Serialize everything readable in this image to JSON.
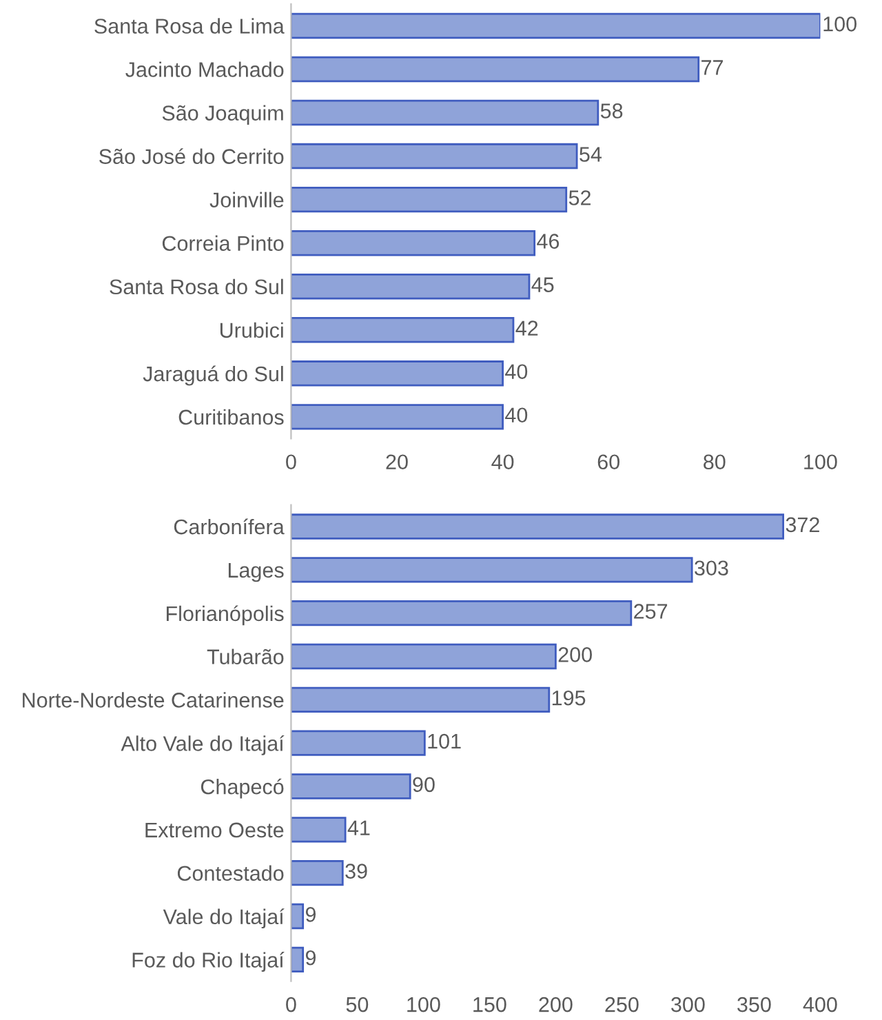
{
  "chart_data": [
    {
      "type": "bar",
      "orientation": "horizontal",
      "categories": [
        "Santa Rosa de Lima",
        "Jacinto Machado",
        "São Joaquim",
        "São José do Cerrito",
        "Joinville",
        "Correia Pinto",
        "Santa Rosa do Sul",
        "Urubici",
        "Jaraguá do Sul",
        "Curitibanos"
      ],
      "values": [
        100,
        77,
        58,
        54,
        52,
        46,
        45,
        42,
        40,
        40
      ],
      "color": "#8fa3d9",
      "xlim": [
        0,
        100
      ],
      "xticks": [
        0,
        20,
        40,
        60,
        80,
        100
      ],
      "data_labels": true,
      "grid": false
    },
    {
      "type": "bar",
      "orientation": "horizontal",
      "categories": [
        "Carbonífera",
        "Lages",
        "Florianópolis",
        "Tubarão",
        "Norte-Nordeste Catarinense",
        "Alto Vale do Itajaí",
        "Chapecó",
        "Extremo Oeste",
        "Contestado",
        "Vale do Itajaí",
        "Foz do Rio Itajaí"
      ],
      "values": [
        372,
        303,
        257,
        200,
        195,
        101,
        90,
        41,
        39,
        9,
        9
      ],
      "color": "#8fa3d9",
      "xlim": [
        0,
        400
      ],
      "xticks": [
        0,
        50,
        100,
        150,
        200,
        250,
        300,
        350,
        400
      ],
      "data_labels": true,
      "grid": false
    }
  ]
}
